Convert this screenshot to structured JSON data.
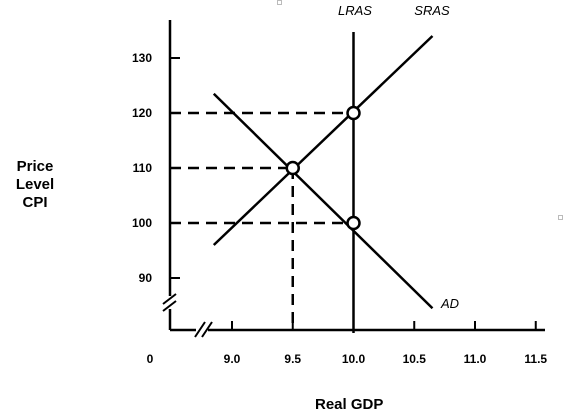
{
  "chart_data": {
    "type": "line",
    "ylabel_lines": [
      "Price Level",
      "CPI"
    ],
    "xlabel": "Real GDP",
    "origin_label": "0",
    "xlim": [
      8.7,
      11.7
    ],
    "ylim": [
      80,
      136
    ],
    "x_ticks": [
      9.0,
      9.5,
      10.0,
      10.5,
      11.0,
      11.5
    ],
    "x_tick_labels": [
      "9.0",
      "9.5",
      "10.0",
      "10.5",
      "11.0",
      "11.5"
    ],
    "y_ticks": [
      90,
      100,
      110,
      120,
      130
    ],
    "y_tick_labels": [
      "90",
      "100",
      "110",
      "120",
      "130"
    ],
    "axis_breaks": [
      "x",
      "y"
    ],
    "series": [
      {
        "name": "LRAS",
        "style": "vertical",
        "x": [
          10.0,
          10.0
        ],
        "y": [
          80,
          134
        ]
      },
      {
        "name": "SRAS",
        "x": [
          8.85,
          10.65
        ],
        "y": [
          96,
          134
        ]
      },
      {
        "name": "AD",
        "x": [
          8.85,
          10.65
        ],
        "y": [
          123.5,
          84.5
        ]
      }
    ],
    "points": [
      {
        "x": 9.5,
        "y": 110
      },
      {
        "x": 10.0,
        "y": 120
      },
      {
        "x": 10.0,
        "y": 100
      }
    ],
    "reference_lines": [
      {
        "x": 9.5,
        "y": 110
      },
      {
        "x": 10.0,
        "y": 120
      },
      {
        "x": 10.0,
        "y": 100
      }
    ],
    "colors": {
      "ink": "#000000",
      "background": "#ffffff"
    }
  }
}
